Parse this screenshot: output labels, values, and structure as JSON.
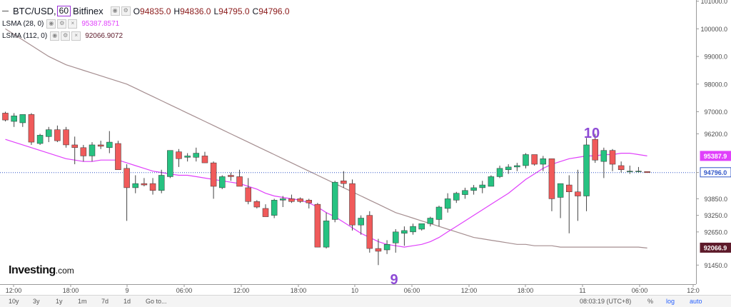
{
  "header": {
    "symbol": "BTC/USD,",
    "resolution": "60",
    "exchange": "Bitfinex",
    "ohlc": [
      {
        "label": "O",
        "value": "94835.0"
      },
      {
        "label": "H",
        "value": "94836.0"
      },
      {
        "label": "L",
        "value": "94795.0"
      },
      {
        "label": "C",
        "value": "94796.0"
      }
    ],
    "indicators": [
      {
        "name": "LSMA (28, 0)",
        "value": "95387.8571",
        "color": "#e040fb"
      },
      {
        "name": "LSMA (112, 0)",
        "value": "92066.9072",
        "color": "#5d1a2a"
      }
    ]
  },
  "brand": {
    "name": "Investing",
    "suffix": ".com"
  },
  "bottom_bar": {
    "ranges": [
      "10y",
      "3y",
      "1y",
      "1m",
      "7d",
      "1d",
      "Go to..."
    ],
    "time": "08:03:19 (UTC+8)",
    "right": [
      "%",
      "log",
      "auto"
    ]
  },
  "colors": {
    "up": "#26c281",
    "down": "#f05a5a",
    "fast_ma": "#e040fb",
    "slow_ma": "#a58e90",
    "last_price": "#3156c8"
  },
  "chart_data": {
    "type": "candlestick",
    "y_ticks": [
      "101000.0",
      "100000.0",
      "99000.0",
      "98000.0",
      "97000.0",
      "96200.0",
      "94800.0",
      "93850.0",
      "93250.0",
      "92650.0",
      "91450.0"
    ],
    "x_ticks": [
      "12:00",
      "18:00",
      "9",
      "06:00",
      "12:00",
      "18:00",
      "10",
      "06:00",
      "12:00",
      "18:00",
      "11",
      "06:00",
      "12:0"
    ],
    "price_labels": [
      {
        "label": "95387.9",
        "color": "#e040fb"
      },
      {
        "label": "94796.0",
        "color": "#3156c8"
      },
      {
        "label": "92066.9",
        "color": "#5d1a2a"
      }
    ],
    "annotations": [
      "9",
      "10"
    ],
    "candles": [
      [
        96950,
        97000,
        96650,
        96700
      ],
      [
        96650,
        96950,
        96450,
        96850
      ],
      [
        96600,
        96900,
        96450,
        96900
      ],
      [
        96900,
        96950,
        95800,
        95900
      ],
      [
        95850,
        96200,
        95800,
        96150
      ],
      [
        96100,
        96450,
        95900,
        96350
      ],
      [
        96350,
        96500,
        95900,
        95950
      ],
      [
        96350,
        96450,
        95700,
        95800
      ],
      [
        95800,
        96100,
        95100,
        95700
      ],
      [
        95700,
        95800,
        95200,
        95400
      ],
      [
        95400,
        95900,
        95200,
        95800
      ],
      [
        95800,
        95950,
        95650,
        95750
      ],
      [
        95700,
        96300,
        95500,
        95900
      ],
      [
        95850,
        95950,
        94950,
        94900
      ],
      [
        94950,
        95100,
        93050,
        94250
      ],
      [
        94250,
        94700,
        94050,
        94400
      ],
      [
        94400,
        94600,
        94300,
        94350
      ],
      [
        94400,
        94600,
        94000,
        94150
      ],
      [
        94150,
        94900,
        94050,
        94700
      ],
      [
        94650,
        95600,
        94600,
        95600
      ],
      [
        95550,
        95650,
        95000,
        95300
      ],
      [
        95350,
        95500,
        95200,
        95400
      ],
      [
        95350,
        95700,
        95200,
        95500
      ],
      [
        95400,
        95550,
        95150,
        95150
      ],
      [
        95150,
        95200,
        93850,
        94300
      ],
      [
        94250,
        94700,
        94200,
        94650
      ],
      [
        94700,
        94800,
        94500,
        94650
      ],
      [
        94650,
        94900,
        94300,
        94300
      ],
      [
        94250,
        94600,
        93650,
        93750
      ],
      [
        93750,
        93800,
        93500,
        93550
      ],
      [
        93500,
        93650,
        93200,
        93200
      ],
      [
        93250,
        93850,
        93150,
        93800
      ],
      [
        93800,
        93950,
        93550,
        93850
      ],
      [
        93850,
        94000,
        93700,
        93750
      ],
      [
        93850,
        93900,
        93700,
        93750
      ],
      [
        93800,
        93850,
        93500,
        93700
      ],
      [
        93650,
        93700,
        92100,
        92100
      ],
      [
        92100,
        93350,
        92050,
        93050
      ],
      [
        93100,
        94500,
        93000,
        94450
      ],
      [
        94500,
        94850,
        94250,
        94400
      ],
      [
        94400,
        94550,
        92700,
        92900
      ],
      [
        92900,
        93250,
        92550,
        93150
      ],
      [
        93250,
        93400,
        91900,
        92050
      ],
      [
        92050,
        92400,
        91450,
        91950
      ],
      [
        92000,
        92350,
        91850,
        92200
      ],
      [
        92250,
        92750,
        91900,
        92650
      ],
      [
        92600,
        92850,
        92150,
        92700
      ],
      [
        92650,
        92950,
        92550,
        92850
      ],
      [
        92750,
        92950,
        92700,
        92950
      ],
      [
        92950,
        93200,
        92850,
        93150
      ],
      [
        93100,
        93600,
        92850,
        93550
      ],
      [
        93500,
        94050,
        93350,
        93850
      ],
      [
        93800,
        94100,
        93700,
        94050
      ],
      [
        94000,
        94250,
        93850,
        94150
      ],
      [
        94150,
        94350,
        94000,
        94250
      ],
      [
        94250,
        94500,
        94050,
        94350
      ],
      [
        94300,
        94700,
        94300,
        94650
      ],
      [
        94650,
        95050,
        94600,
        94950
      ],
      [
        94900,
        95100,
        94750,
        95000
      ],
      [
        95000,
        95150,
        94850,
        95050
      ],
      [
        95050,
        95500,
        94950,
        95450
      ],
      [
        95450,
        95450,
        95050,
        95100
      ],
      [
        95100,
        95400,
        94850,
        95300
      ],
      [
        95300,
        95300,
        93400,
        93850
      ],
      [
        93900,
        94350,
        93150,
        94400
      ],
      [
        94350,
        94700,
        92600,
        94100
      ],
      [
        94100,
        94900,
        93050,
        93950
      ],
      [
        93950,
        96050,
        93400,
        95800
      ],
      [
        96000,
        96200,
        95150,
        95250
      ],
      [
        95200,
        95700,
        94600,
        95600
      ],
      [
        95600,
        95650,
        94850,
        95100
      ],
      [
        95050,
        95200,
        94800,
        94900
      ],
      [
        94850,
        95050,
        94750,
        94850
      ],
      [
        94850,
        95000,
        94800,
        94850
      ],
      [
        94835,
        94836,
        94795,
        94796
      ]
    ],
    "series": [
      {
        "name": "LSMA (28, 0)",
        "values": [
          96000,
          95900,
          95800,
          95700,
          95600,
          95500,
          95400,
          95300,
          95250,
          95200,
          95200,
          95250,
          95250,
          95250,
          95150,
          95050,
          94950,
          94850,
          94800,
          94750,
          94700,
          94700,
          94650,
          94600,
          94550,
          94500,
          94450,
          94400,
          94300,
          94200,
          94050,
          93950,
          93900,
          93850,
          93800,
          93700,
          93550,
          93350,
          93200,
          93000,
          92800,
          92600,
          92450,
          92300,
          92200,
          92150,
          92100,
          92150,
          92200,
          92300,
          92450,
          92650,
          92850,
          93050,
          93250,
          93450,
          93650,
          93850,
          94050,
          94300,
          94550,
          94750,
          94950,
          95100,
          95200,
          95300,
          95350,
          95400,
          95400,
          95450,
          95450,
          95500,
          95500,
          95450,
          95400
        ]
      },
      {
        "name": "LSMA (112, 0)",
        "values": [
          100000,
          99800,
          99600,
          99400,
          99200,
          99000,
          98850,
          98700,
          98600,
          98500,
          98400,
          98300,
          98200,
          98100,
          98000,
          97850,
          97700,
          97550,
          97400,
          97250,
          97100,
          96950,
          96800,
          96650,
          96500,
          96350,
          96200,
          96050,
          95900,
          95750,
          95600,
          95450,
          95300,
          95150,
          95000,
          94850,
          94700,
          94550,
          94400,
          94250,
          94100,
          93950,
          93800,
          93650,
          93500,
          93350,
          93250,
          93150,
          93050,
          92950,
          92850,
          92750,
          92650,
          92550,
          92450,
          92400,
          92350,
          92300,
          92250,
          92200,
          92200,
          92150,
          92150,
          92150,
          92100,
          92100,
          92100,
          92100,
          92100,
          92100,
          92100,
          92100,
          92100,
          92100,
          92066.9
        ]
      }
    ],
    "last_price": 94796.0
  }
}
